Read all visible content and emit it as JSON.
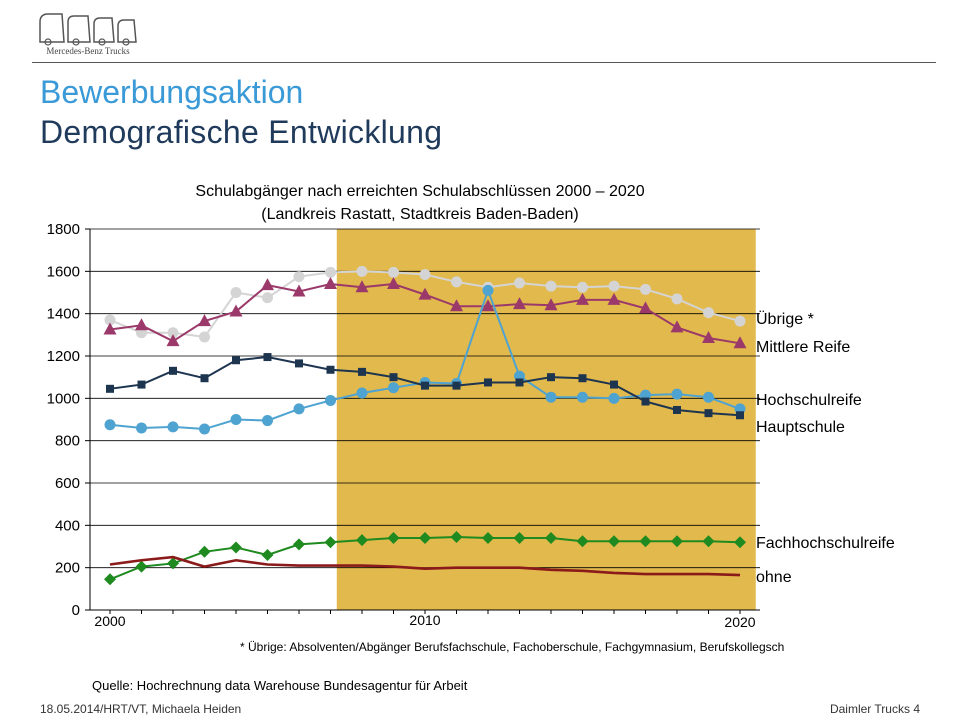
{
  "logo": {
    "name": "mercedes-benz-trucks-logo",
    "text": "Mercedes-Benz Trucks"
  },
  "header": {
    "title": "Bewerbungsaktion",
    "subtitle": "Demografische Entwicklung"
  },
  "chart_title_line1": "Schulabgänger nach erreichten Schulabschlüssen 2000 – 2020",
  "chart_title_line2": "(Landkreis Rastatt, Stadtkreis Baden-Baden)",
  "footnote": "* Übrige: Absolventen/Abgänger Berufsfachschule, Fachoberschule, Fachgymnasium, Berufskollegsch",
  "source": "Quelle: Hochrechnung data Warehouse Bundesagentur für Arbeit",
  "footer": {
    "left": "18.05.2014/HRT/VT, Michaela Heiden",
    "right": "Daimler Trucks   4"
  },
  "colors": {
    "highlight": "#e2b94c",
    "title_accent": "#3a9ad8",
    "title_dark": "#1f3a5a"
  },
  "chart_data": {
    "type": "line",
    "x": [
      2000,
      2001,
      2002,
      2003,
      2004,
      2005,
      2006,
      2007,
      2008,
      2009,
      2010,
      2011,
      2012,
      2013,
      2014,
      2015,
      2016,
      2017,
      2018,
      2019,
      2020
    ],
    "x_tick_labels": [
      "2000",
      "2010",
      "2020"
    ],
    "ylim": [
      0,
      1800
    ],
    "y_ticks": [
      0,
      200,
      400,
      600,
      800,
      1000,
      1200,
      1400,
      1600,
      1800
    ],
    "highlight_range": [
      2007.2,
      2020.5
    ],
    "grid": true,
    "series": [
      {
        "name": "Übrige *",
        "color": "#d4d4d4",
        "marker": "circle",
        "values": [
          1370,
          1310,
          1310,
          1290,
          1500,
          1475,
          1575,
          1595,
          1600,
          1595,
          1585,
          1550,
          1525,
          1545,
          1530,
          1525,
          1530,
          1515,
          1470,
          1405,
          1365
        ]
      },
      {
        "name": "Mittlere Reife",
        "color": "#9b3a6a",
        "marker": "triangle",
        "values": [
          1325,
          1345,
          1270,
          1365,
          1410,
          1535,
          1505,
          1540,
          1525,
          1540,
          1490,
          1435,
          1435,
          1445,
          1440,
          1465,
          1465,
          1425,
          1335,
          1285,
          1260
        ]
      },
      {
        "name": "Hochschulreife",
        "color": "#4fa3d1",
        "marker": "circle",
        "values": [
          875,
          860,
          865,
          855,
          900,
          895,
          950,
          990,
          1025,
          1050,
          1075,
          1070,
          1510,
          1105,
          1005,
          1005,
          1000,
          1015,
          1020,
          1005,
          950
        ]
      },
      {
        "name": "Hauptschule",
        "color": "#1e3550",
        "marker": "square",
        "values": [
          1045,
          1065,
          1130,
          1095,
          1180,
          1195,
          1165,
          1135,
          1125,
          1100,
          1060,
          1060,
          1075,
          1075,
          1100,
          1095,
          1065,
          985,
          945,
          930,
          920
        ]
      },
      {
        "name": "Fachhochschulreife",
        "color": "#1f8a1f",
        "marker": "diamond",
        "values": [
          145,
          205,
          220,
          275,
          295,
          260,
          310,
          320,
          330,
          340,
          340,
          345,
          340,
          340,
          340,
          325,
          325,
          325,
          325,
          325,
          320
        ]
      },
      {
        "name": "ohne",
        "color": "#8b1a1a",
        "marker": "none",
        "values": [
          215,
          235,
          250,
          205,
          235,
          215,
          210,
          210,
          210,
          205,
          195,
          200,
          200,
          200,
          190,
          185,
          175,
          170,
          170,
          170,
          165
        ]
      }
    ]
  }
}
